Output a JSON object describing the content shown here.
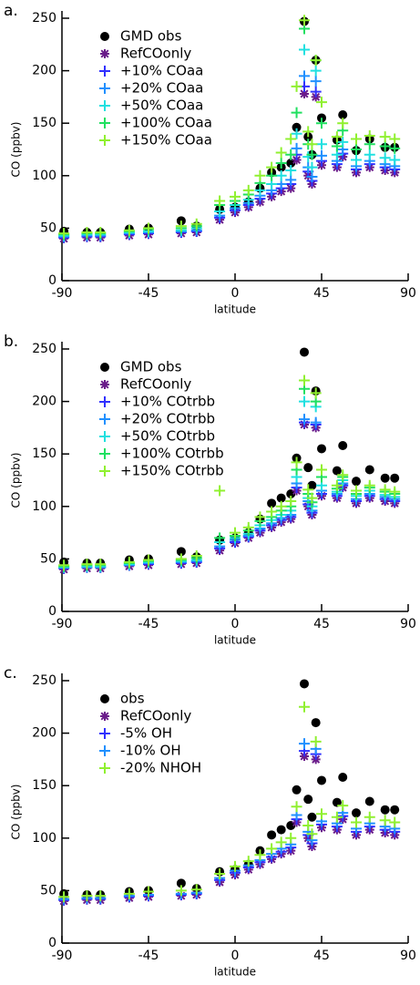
{
  "chart_data": [
    {
      "type": "scatter",
      "panel_label": "a.",
      "xlabel": "latitude",
      "ylabel": "CO (ppbv)",
      "xlim": [
        -90,
        90
      ],
      "ylim": [
        0,
        250
      ],
      "xticks": [
        -90,
        -45,
        0,
        45,
        90
      ],
      "yticks": [
        0,
        50,
        100,
        150,
        200,
        250
      ],
      "x": [
        -89,
        -77,
        -70,
        -55,
        -45,
        -28,
        -20,
        -8,
        0,
        7,
        13,
        19,
        24,
        29,
        32,
        36,
        38,
        40,
        42,
        45,
        53,
        56,
        63,
        70,
        78,
        83
      ],
      "series": [
        {
          "name": "GMD obs",
          "color": "#000000",
          "marker": "circle",
          "values": [
            47,
            46,
            46,
            49,
            50,
            57,
            52,
            68,
            70,
            75,
            88,
            103,
            108,
            112,
            146,
            247,
            137,
            120,
            210,
            155,
            134,
            158,
            124,
            135,
            127,
            127
          ]
        },
        {
          "name": "RefCOonly",
          "color": "#6a1b8a",
          "marker": "asterisk",
          "values": [
            40,
            41,
            41,
            43,
            44,
            45,
            46,
            58,
            65,
            70,
            75,
            80,
            85,
            88,
            115,
            178,
            100,
            92,
            175,
            110,
            108,
            118,
            103,
            108,
            105,
            103
          ]
        },
        {
          "name": "+10% COaa",
          "color": "#3030ff",
          "marker": "plus",
          "values": [
            41,
            42,
            42,
            44,
            45,
            46,
            47,
            60,
            67,
            72,
            78,
            83,
            88,
            92,
            120,
            185,
            104,
            95,
            180,
            114,
            111,
            121,
            106,
            111,
            108,
            106
          ]
        },
        {
          "name": "+20% COaa",
          "color": "#2090ff",
          "marker": "plus",
          "values": [
            42,
            43,
            43,
            45,
            46,
            47,
            48,
            62,
            69,
            74,
            81,
            86,
            92,
            96,
            126,
            195,
            108,
            99,
            190,
            119,
            114,
            125,
            109,
            114,
            111,
            109
          ]
        },
        {
          "name": "+50% COaa",
          "color": "#20e0e0",
          "marker": "plus",
          "values": [
            43,
            44,
            44,
            46,
            47,
            48,
            50,
            66,
            72,
            77,
            86,
            92,
            100,
            105,
            140,
            220,
            118,
            108,
            200,
            130,
            120,
            132,
            115,
            120,
            117,
            115
          ]
        },
        {
          "name": "+100% COaa",
          "color": "#20e060",
          "marker": "plus",
          "values": [
            44,
            45,
            45,
            47,
            49,
            50,
            52,
            72,
            76,
            82,
            93,
            100,
            112,
            120,
            160,
            240,
            130,
            120,
            210,
            150,
            128,
            143,
            125,
            130,
            128,
            126
          ]
        },
        {
          "name": "+150% COaa",
          "color": "#90f030",
          "marker": "plus",
          "values": [
            45,
            46,
            46,
            48,
            50,
            52,
            54,
            76,
            80,
            86,
            100,
            108,
            122,
            135,
            185,
            248,
            142,
            130,
            210,
            170,
            137,
            150,
            135,
            138,
            137,
            135
          ]
        }
      ]
    },
    {
      "type": "scatter",
      "panel_label": "b.",
      "xlabel": "latitude",
      "ylabel": "CO (ppbv)",
      "xlim": [
        -90,
        90
      ],
      "ylim": [
        0,
        250
      ],
      "xticks": [
        -90,
        -45,
        0,
        45,
        90
      ],
      "yticks": [
        0,
        50,
        100,
        150,
        200,
        250
      ],
      "x": [
        -89,
        -77,
        -70,
        -55,
        -45,
        -28,
        -20,
        -8,
        0,
        7,
        13,
        19,
        24,
        29,
        32,
        36,
        38,
        40,
        42,
        45,
        53,
        56,
        63,
        70,
        78,
        83
      ],
      "series": [
        {
          "name": "GMD obs",
          "color": "#000000",
          "marker": "circle",
          "values": [
            47,
            46,
            46,
            49,
            50,
            57,
            52,
            68,
            70,
            75,
            88,
            103,
            108,
            112,
            146,
            247,
            137,
            120,
            210,
            155,
            134,
            158,
            124,
            135,
            127,
            127
          ]
        },
        {
          "name": "RefCOonly",
          "color": "#6a1b8a",
          "marker": "asterisk",
          "values": [
            40,
            41,
            41,
            43,
            44,
            45,
            46,
            58,
            65,
            70,
            75,
            80,
            85,
            88,
            115,
            178,
            100,
            92,
            175,
            110,
            108,
            118,
            103,
            108,
            105,
            103
          ]
        },
        {
          "name": "+10% COtrbb",
          "color": "#3030ff",
          "marker": "plus",
          "values": [
            41,
            42,
            42,
            44,
            45,
            46,
            47,
            60,
            66,
            71,
            77,
            82,
            87,
            90,
            118,
            180,
            102,
            94,
            178,
            112,
            110,
            120,
            105,
            110,
            107,
            105
          ]
        },
        {
          "name": "+20% COtrbb",
          "color": "#2090ff",
          "marker": "plus",
          "values": [
            42,
            42,
            42,
            44,
            46,
            47,
            48,
            62,
            68,
            72,
            79,
            84,
            89,
            92,
            122,
            183,
            105,
            96,
            180,
            115,
            112,
            122,
            107,
            112,
            109,
            107
          ]
        },
        {
          "name": "+50% COtrbb",
          "color": "#20e0e0",
          "marker": "plus",
          "values": [
            42,
            43,
            43,
            45,
            47,
            48,
            49,
            66,
            70,
            74,
            82,
            87,
            92,
            96,
            128,
            200,
            108,
            100,
            195,
            120,
            114,
            125,
            110,
            115,
            111,
            109
          ]
        },
        {
          "name": "+100% COtrbb",
          "color": "#20e060",
          "marker": "plus",
          "values": [
            43,
            44,
            44,
            46,
            48,
            49,
            51,
            70,
            72,
            77,
            86,
            90,
            96,
            100,
            135,
            212,
            112,
            104,
            200,
            128,
            117,
            128,
            112,
            118,
            114,
            112
          ]
        },
        {
          "name": "+150% COtrbb",
          "color": "#90f030",
          "marker": "plus",
          "values": [
            44,
            45,
            45,
            47,
            49,
            50,
            53,
            115,
            75,
            80,
            90,
            95,
            100,
            105,
            142,
            220,
            116,
            108,
            208,
            135,
            120,
            130,
            115,
            120,
            116,
            114
          ]
        }
      ]
    },
    {
      "type": "scatter",
      "panel_label": "c.",
      "xlabel": "latitude",
      "ylabel": "CO (ppbv)",
      "xlim": [
        -90,
        90
      ],
      "ylim": [
        0,
        250
      ],
      "xticks": [
        -90,
        -45,
        0,
        45,
        90
      ],
      "yticks": [
        0,
        50,
        100,
        150,
        200,
        250
      ],
      "x": [
        -89,
        -77,
        -70,
        -55,
        -45,
        -28,
        -20,
        -8,
        0,
        7,
        13,
        19,
        24,
        29,
        32,
        36,
        38,
        40,
        42,
        45,
        53,
        56,
        63,
        70,
        78,
        83
      ],
      "series": [
        {
          "name": "obs",
          "color": "#000000",
          "marker": "circle",
          "values": [
            47,
            46,
            46,
            49,
            50,
            57,
            52,
            68,
            70,
            75,
            88,
            103,
            108,
            112,
            146,
            247,
            137,
            120,
            210,
            155,
            134,
            158,
            124,
            135,
            127,
            127
          ]
        },
        {
          "name": "RefCOonly",
          "color": "#6a1b8a",
          "marker": "asterisk",
          "values": [
            40,
            41,
            41,
            43,
            44,
            45,
            46,
            58,
            65,
            70,
            75,
            80,
            85,
            88,
            115,
            178,
            100,
            92,
            175,
            110,
            108,
            118,
            103,
            108,
            105,
            103
          ]
        },
        {
          "name": "-5% OH",
          "color": "#3030ff",
          "marker": "plus",
          "values": [
            41,
            42,
            42,
            44,
            45,
            46,
            47,
            60,
            67,
            72,
            77,
            82,
            87,
            91,
            118,
            183,
            103,
            95,
            180,
            113,
            111,
            121,
            106,
            111,
            108,
            106
          ]
        },
        {
          "name": "-10% OH",
          "color": "#2090ff",
          "marker": "plus",
          "values": [
            42,
            43,
            43,
            45,
            46,
            47,
            48,
            62,
            69,
            74,
            79,
            85,
            90,
            94,
            122,
            190,
            106,
            98,
            185,
            116,
            114,
            124,
            109,
            114,
            111,
            109
          ]
        },
        {
          "name": "-20% NHOH",
          "color": "#90f030",
          "marker": "plus",
          "values": [
            44,
            45,
            45,
            47,
            49,
            50,
            51,
            66,
            73,
            78,
            84,
            90,
            96,
            100,
            130,
            225,
            112,
            104,
            192,
            123,
            120,
            131,
            115,
            120,
            117,
            115
          ]
        }
      ]
    }
  ]
}
